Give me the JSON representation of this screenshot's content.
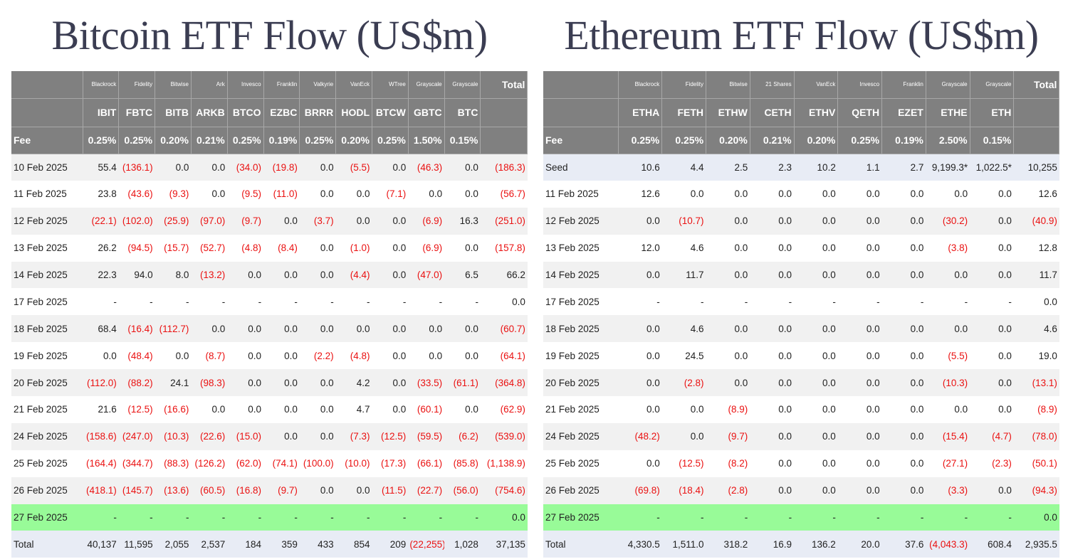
{
  "btc": {
    "title": "Bitcoin ETF Flow (US$m)",
    "issuers": [
      "Blackrock",
      "Fidelity",
      "Bitwise",
      "Ark",
      "Invesco",
      "Franklin",
      "Valkyrie",
      "VanEck",
      "WTree",
      "Grayscale",
      "Grayscale"
    ],
    "total_label": "Total",
    "tickers": [
      "IBIT",
      "FBTC",
      "BITB",
      "ARKB",
      "BTCO",
      "EZBC",
      "BRRR",
      "HODL",
      "BTCW",
      "GBTC",
      "BTC"
    ],
    "fee_label": "Fee",
    "fees": [
      "0.25%",
      "0.25%",
      "0.20%",
      "0.21%",
      "0.25%",
      "0.19%",
      "0.25%",
      "0.20%",
      "0.25%",
      "1.50%",
      "0.15%"
    ],
    "highlight_row": 13,
    "rows": [
      {
        "date": "10 Feb 2025",
        "values": [
          "55.4",
          "(136.1)",
          "0.0",
          "0.0",
          "(34.0)",
          "(19.8)",
          "0.0",
          "(5.5)",
          "0.0",
          "(46.3)",
          "0.0",
          "(186.3)"
        ]
      },
      {
        "date": "11 Feb 2025",
        "values": [
          "23.8",
          "(43.6)",
          "(9.3)",
          "0.0",
          "(9.5)",
          "(11.0)",
          "0.0",
          "0.0",
          "(7.1)",
          "0.0",
          "0.0",
          "(56.7)"
        ]
      },
      {
        "date": "12 Feb 2025",
        "values": [
          "(22.1)",
          "(102.0)",
          "(25.9)",
          "(97.0)",
          "(9.7)",
          "0.0",
          "(3.7)",
          "0.0",
          "0.0",
          "(6.9)",
          "16.3",
          "(251.0)"
        ]
      },
      {
        "date": "13 Feb 2025",
        "values": [
          "26.2",
          "(94.5)",
          "(15.7)",
          "(52.7)",
          "(4.8)",
          "(8.4)",
          "0.0",
          "(1.0)",
          "0.0",
          "(6.9)",
          "0.0",
          "(157.8)"
        ]
      },
      {
        "date": "14 Feb 2025",
        "values": [
          "22.3",
          "94.0",
          "8.0",
          "(13.2)",
          "0.0",
          "0.0",
          "0.0",
          "(4.4)",
          "0.0",
          "(47.0)",
          "6.5",
          "66.2"
        ]
      },
      {
        "date": "17 Feb 2025",
        "values": [
          "-",
          "-",
          "-",
          "-",
          "-",
          "-",
          "-",
          "-",
          "-",
          "-",
          "-",
          "0.0"
        ]
      },
      {
        "date": "18 Feb 2025",
        "values": [
          "68.4",
          "(16.4)",
          "(112.7)",
          "0.0",
          "0.0",
          "0.0",
          "0.0",
          "0.0",
          "0.0",
          "0.0",
          "0.0",
          "(60.7)"
        ]
      },
      {
        "date": "19 Feb 2025",
        "values": [
          "0.0",
          "(48.4)",
          "0.0",
          "(8.7)",
          "0.0",
          "0.0",
          "(2.2)",
          "(4.8)",
          "0.0",
          "0.0",
          "0.0",
          "(64.1)"
        ]
      },
      {
        "date": "20 Feb 2025",
        "values": [
          "(112.0)",
          "(88.2)",
          "24.1",
          "(98.3)",
          "0.0",
          "0.0",
          "0.0",
          "4.2",
          "0.0",
          "(33.5)",
          "(61.1)",
          "(364.8)"
        ]
      },
      {
        "date": "21 Feb 2025",
        "values": [
          "21.6",
          "(12.5)",
          "(16.6)",
          "0.0",
          "0.0",
          "0.0",
          "0.0",
          "4.7",
          "0.0",
          "(60.1)",
          "0.0",
          "(62.9)"
        ]
      },
      {
        "date": "24 Feb 2025",
        "values": [
          "(158.6)",
          "(247.0)",
          "(10.3)",
          "(22.6)",
          "(15.0)",
          "0.0",
          "0.0",
          "(7.3)",
          "(12.5)",
          "(59.5)",
          "(6.2)",
          "(539.0)"
        ]
      },
      {
        "date": "25 Feb 2025",
        "values": [
          "(164.4)",
          "(344.7)",
          "(88.3)",
          "(126.2)",
          "(62.0)",
          "(74.1)",
          "(100.0)",
          "(10.0)",
          "(17.3)",
          "(66.1)",
          "(85.8)",
          "(1,138.9)"
        ]
      },
      {
        "date": "26 Feb 2025",
        "values": [
          "(418.1)",
          "(145.7)",
          "(13.6)",
          "(60.5)",
          "(16.8)",
          "(9.7)",
          "0.0",
          "0.0",
          "(11.5)",
          "(22.7)",
          "(56.0)",
          "(754.6)"
        ]
      },
      {
        "date": "27 Feb 2025",
        "values": [
          "-",
          "-",
          "-",
          "-",
          "-",
          "-",
          "-",
          "-",
          "-",
          "-",
          "-",
          "0.0"
        ]
      }
    ],
    "totals": {
      "label": "Total",
      "values": [
        "40,137",
        "11,595",
        "2,055",
        "2,537",
        "184",
        "359",
        "433",
        "854",
        "209",
        "(22,255)",
        "1,028",
        "37,135"
      ]
    }
  },
  "eth": {
    "title": "Ethereum ETF Flow (US$m)",
    "issuers": [
      "Blackrock",
      "Fidelity",
      "Bitwise",
      "21 Shares",
      "VanEck",
      "Invesco",
      "Franklin",
      "Grayscale",
      "Grayscale"
    ],
    "total_label": "Total",
    "tickers": [
      "ETHA",
      "FETH",
      "ETHW",
      "CETH",
      "ETHV",
      "QETH",
      "EZET",
      "ETHE",
      "ETH"
    ],
    "fee_label": "Fee",
    "fees": [
      "0.25%",
      "0.25%",
      "0.20%",
      "0.21%",
      "0.20%",
      "0.25%",
      "0.19%",
      "2.50%",
      "0.15%"
    ],
    "highlight_row": 13,
    "rows": [
      {
        "date": "Seed",
        "values": [
          "10.6",
          "4.4",
          "2.5",
          "2.3",
          "10.2",
          "1.1",
          "2.7",
          "9,199.3*",
          "1,022.5*",
          "10,255"
        ]
      },
      {
        "date": "11 Feb 2025",
        "values": [
          "12.6",
          "0.0",
          "0.0",
          "0.0",
          "0.0",
          "0.0",
          "0.0",
          "0.0",
          "0.0",
          "12.6"
        ]
      },
      {
        "date": "12 Feb 2025",
        "values": [
          "0.0",
          "(10.7)",
          "0.0",
          "0.0",
          "0.0",
          "0.0",
          "0.0",
          "(30.2)",
          "0.0",
          "(40.9)"
        ]
      },
      {
        "date": "13 Feb 2025",
        "values": [
          "12.0",
          "4.6",
          "0.0",
          "0.0",
          "0.0",
          "0.0",
          "0.0",
          "(3.8)",
          "0.0",
          "12.8"
        ]
      },
      {
        "date": "14 Feb 2025",
        "values": [
          "0.0",
          "11.7",
          "0.0",
          "0.0",
          "0.0",
          "0.0",
          "0.0",
          "0.0",
          "0.0",
          "11.7"
        ]
      },
      {
        "date": "17 Feb 2025",
        "values": [
          "-",
          "-",
          "-",
          "-",
          "-",
          "-",
          "-",
          "-",
          "-",
          "0.0"
        ]
      },
      {
        "date": "18 Feb 2025",
        "values": [
          "0.0",
          "4.6",
          "0.0",
          "0.0",
          "0.0",
          "0.0",
          "0.0",
          "0.0",
          "0.0",
          "4.6"
        ]
      },
      {
        "date": "19 Feb 2025",
        "values": [
          "0.0",
          "24.5",
          "0.0",
          "0.0",
          "0.0",
          "0.0",
          "0.0",
          "(5.5)",
          "0.0",
          "19.0"
        ]
      },
      {
        "date": "20 Feb 2025",
        "values": [
          "0.0",
          "(2.8)",
          "0.0",
          "0.0",
          "0.0",
          "0.0",
          "0.0",
          "(10.3)",
          "0.0",
          "(13.1)"
        ]
      },
      {
        "date": "21 Feb 2025",
        "values": [
          "0.0",
          "0.0",
          "(8.9)",
          "0.0",
          "0.0",
          "0.0",
          "0.0",
          "0.0",
          "0.0",
          "(8.9)"
        ]
      },
      {
        "date": "24 Feb 2025",
        "values": [
          "(48.2)",
          "0.0",
          "(9.7)",
          "0.0",
          "0.0",
          "0.0",
          "0.0",
          "(15.4)",
          "(4.7)",
          "(78.0)"
        ]
      },
      {
        "date": "25 Feb 2025",
        "values": [
          "0.0",
          "(12.5)",
          "(8.2)",
          "0.0",
          "0.0",
          "0.0",
          "0.0",
          "(27.1)",
          "(2.3)",
          "(50.1)"
        ]
      },
      {
        "date": "26 Feb 2025",
        "values": [
          "(69.8)",
          "(18.4)",
          "(2.8)",
          "0.0",
          "0.0",
          "0.0",
          "0.0",
          "(3.3)",
          "0.0",
          "(94.3)"
        ]
      },
      {
        "date": "27 Feb 2025",
        "values": [
          "-",
          "-",
          "-",
          "-",
          "-",
          "-",
          "-",
          "-",
          "-",
          "0.0"
        ]
      }
    ],
    "totals": {
      "label": "Total",
      "values": [
        "4,330.5",
        "1,511.0",
        "318.2",
        "16.9",
        "136.2",
        "20.0",
        "37.6",
        "(4,043.3)",
        "608.4",
        "2,935.5"
      ]
    }
  },
  "colors": {
    "header_bg": "#808080",
    "negative": "#ea1111",
    "highlight": "#98fb98",
    "title": "#3b3d52"
  }
}
